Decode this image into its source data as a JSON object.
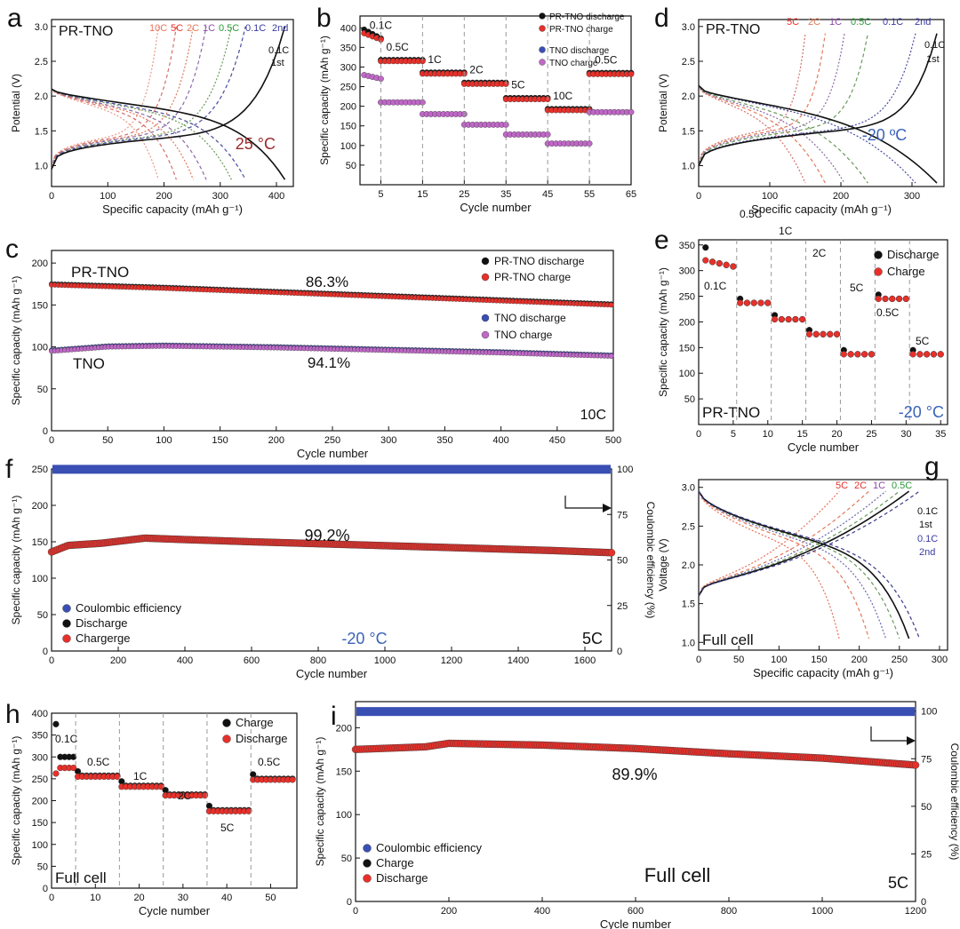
{
  "colors": {
    "red": "#e8302a",
    "black": "#111111",
    "blue": "#3a4fb4",
    "purple": "#c068c8",
    "green": "#2a9a3a",
    "navy": "#3a3aa0",
    "darkred": "#9a2a2a",
    "blueText": "#3b63b8"
  },
  "chart_data": [
    {
      "panel": "a",
      "type": "line",
      "label": "PR-TNO",
      "temperature": "25 °C",
      "xlabel": "Specific capacity (mAh g⁻¹)",
      "ylabel": "Potential (V)",
      "xlim": [
        0,
        430
      ],
      "ylim": [
        0.7,
        3.1
      ],
      "xticks": [
        0,
        100,
        200,
        300,
        400
      ],
      "yticks": [
        1.0,
        1.5,
        2.0,
        2.5,
        3.0
      ],
      "rate_labels": [
        "10C",
        "5C",
        "2C",
        "1C",
        "0.5C",
        "0.1C",
        "2nd"
      ],
      "first_labels": [
        "0.1C",
        "1st"
      ],
      "series": [
        {
          "rate": "10C",
          "capacity": 190
        },
        {
          "rate": "5C",
          "capacity": 222
        },
        {
          "rate": "2C",
          "capacity": 252
        },
        {
          "rate": "1C",
          "capacity": 275
        },
        {
          "rate": "0.5C",
          "capacity": 320
        },
        {
          "rate": "0.1C 2nd",
          "capacity": 345
        },
        {
          "rate": "0.1C 1st",
          "capacity": 415
        }
      ]
    },
    {
      "panel": "b",
      "type": "scatter",
      "xlabel": "Cycle number",
      "ylabel": "Specific capacity (mAh g⁻¹)",
      "xlim": [
        0,
        65
      ],
      "ylim": [
        0,
        430
      ],
      "xticks": [
        5,
        15,
        25,
        35,
        45,
        55,
        65
      ],
      "yticks": [
        50,
        100,
        150,
        200,
        250,
        300,
        350,
        400
      ],
      "legend": [
        "PR-TNO discharge",
        "PR-TNO charge",
        "TNO discharge",
        "TNO charge"
      ],
      "rate_labels": [
        "0.1C",
        "0.5C",
        "1C",
        "2C",
        "5C",
        "10C",
        "0.5C"
      ],
      "steps": [
        {
          "rate": "0.1C",
          "start": 1,
          "end": 5,
          "pr": 370,
          "tno": 270
        },
        {
          "rate": "0.5C",
          "start": 5,
          "end": 15,
          "pr": 315,
          "tno": 210
        },
        {
          "rate": "1C",
          "start": 15,
          "end": 25,
          "pr": 283,
          "tno": 180
        },
        {
          "rate": "2C",
          "start": 25,
          "end": 35,
          "pr": 257,
          "tno": 153
        },
        {
          "rate": "5C",
          "start": 35,
          "end": 45,
          "pr": 218,
          "tno": 128
        },
        {
          "rate": "10C",
          "start": 45,
          "end": 55,
          "pr": 190,
          "tno": 105
        },
        {
          "rate": "0.5C",
          "start": 55,
          "end": 65,
          "pr": 282,
          "tno": 185
        }
      ]
    },
    {
      "panel": "c",
      "type": "scatter",
      "xlabel": "Cycle number",
      "ylabel": "Specific capacity (mAh g⁻¹)",
      "xlim": [
        0,
        500
      ],
      "ylim": [
        0,
        215
      ],
      "xticks": [
        0,
        50,
        100,
        150,
        200,
        250,
        300,
        350,
        400,
        450,
        500
      ],
      "yticks": [
        0,
        50,
        100,
        150,
        200
      ],
      "legend": [
        "PR-TNO discharge",
        "PR-TNO charge",
        "TNO discharge",
        "TNO charge"
      ],
      "annotations": [
        "PR-TNO",
        "86.3%",
        "TNO",
        "94.1%",
        "10C"
      ],
      "series": [
        {
          "name": "PR-TNO",
          "x": [
            0,
            100,
            200,
            300,
            400,
            500
          ],
          "y": [
            174,
            170,
            165,
            160,
            155,
            150
          ]
        },
        {
          "name": "TNO",
          "x": [
            0,
            50,
            100,
            200,
            300,
            400,
            500
          ],
          "y": [
            95,
            100,
            101,
            99,
            96,
            93,
            89
          ]
        }
      ]
    },
    {
      "panel": "d",
      "type": "line",
      "label": "PR-TNO",
      "temperature": "-20 ºC",
      "xlabel": "Specific capacity (mAh g⁻¹)",
      "ylabel": "Potential (V)",
      "xlim": [
        0,
        345
      ],
      "ylim": [
        0.7,
        3.1
      ],
      "xticks": [
        0,
        100,
        200,
        300
      ],
      "yticks": [
        1.0,
        1.5,
        2.0,
        2.5,
        3.0
      ],
      "rate_labels": [
        "5C",
        "2C",
        "1C",
        "0.5C",
        "0.1C",
        "2nd"
      ],
      "first_labels": [
        "0.1C",
        "1st"
      ],
      "series": [
        {
          "rate": "5C",
          "capacity": 150
        },
        {
          "rate": "2C",
          "capacity": 178
        },
        {
          "rate": "1C",
          "capacity": 205
        },
        {
          "rate": "0.5C",
          "capacity": 238
        },
        {
          "rate": "0.1C 2nd",
          "capacity": 305
        },
        {
          "rate": "0.1C 1st",
          "capacity": 335
        }
      ]
    },
    {
      "panel": "e",
      "type": "scatter",
      "xlabel": "Cycle number",
      "ylabel": "Specific capacity (mAh g⁻¹)",
      "xlim": [
        0,
        36
      ],
      "ylim": [
        0,
        360
      ],
      "xticks": [
        0,
        5,
        10,
        15,
        20,
        25,
        30,
        35
      ],
      "yticks": [
        50,
        100,
        150,
        200,
        250,
        300,
        350
      ],
      "legend": [
        "Discharge",
        "Charge"
      ],
      "label": "PR-TNO",
      "temperature": "-20 °C",
      "rate_labels": [
        "0.1C",
        "0.5C",
        "1C",
        "2C",
        "5C",
        "0.5C",
        "5C"
      ],
      "steps": [
        {
          "rate": "0.1C",
          "start": 1,
          "end": 5,
          "value": 308
        },
        {
          "rate": "0.5C",
          "start": 6,
          "end": 10,
          "value": 237
        },
        {
          "rate": "1C",
          "start": 11,
          "end": 15,
          "value": 205
        },
        {
          "rate": "2C",
          "start": 16,
          "end": 20,
          "value": 176
        },
        {
          "rate": "5C",
          "start": 21,
          "end": 25,
          "value": 137
        },
        {
          "rate": "0.5C",
          "start": 26,
          "end": 30,
          "value": 245
        },
        {
          "rate": "5C",
          "start": 31,
          "end": 35,
          "value": 137
        }
      ]
    },
    {
      "panel": "f",
      "type": "scatter",
      "xlabel": "Cycle number",
      "ylabel": "Specific capacity (mAh g⁻¹)",
      "y2label": "Coulombic efficiency (%)",
      "xlim": [
        0,
        1680
      ],
      "ylim": [
        0,
        250
      ],
      "y2lim": [
        0,
        100
      ],
      "xticks": [
        0,
        200,
        400,
        600,
        800,
        1000,
        1200,
        1400,
        1600
      ],
      "yticks": [
        0,
        50,
        100,
        150,
        200,
        250
      ],
      "y2ticks": [
        0,
        25,
        50,
        75,
        100
      ],
      "legend": [
        "Coulombic efficiency",
        "Discharge",
        "Chargerge"
      ],
      "annotations": [
        "99.2%",
        "-20 °C",
        "5C"
      ],
      "efficiency": 99.8,
      "series": [
        {
          "name": "capacity",
          "x": [
            0,
            50,
            150,
            280,
            400,
            600,
            900,
            1200,
            1500,
            1680
          ],
          "y": [
            136,
            145,
            148,
            155,
            153,
            150,
            146,
            142,
            138,
            135
          ]
        }
      ]
    },
    {
      "panel": "g",
      "type": "line",
      "xlabel": "Specific capacity (mAh g⁻¹)",
      "ylabel": "Voltage (V)",
      "xlim": [
        0,
        310
      ],
      "ylim": [
        0.9,
        3.1
      ],
      "xticks": [
        0,
        50,
        100,
        150,
        200,
        250,
        300
      ],
      "yticks": [
        1.0,
        1.5,
        2.0,
        2.5,
        3.0
      ],
      "rate_labels": [
        "5C",
        "2C",
        "1C",
        "0.5C"
      ],
      "first_labels": [
        "0.1C",
        "1st",
        "0.1C",
        "2nd"
      ],
      "label": "Full cell",
      "series": [
        {
          "rate": "5C",
          "capacity": 175
        },
        {
          "rate": "2C",
          "capacity": 212
        },
        {
          "rate": "1C",
          "capacity": 233
        },
        {
          "rate": "0.5C",
          "capacity": 250
        },
        {
          "rate": "0.1C 1st",
          "capacity": 262
        },
        {
          "rate": "0.1C 2nd",
          "capacity": 275
        }
      ]
    },
    {
      "panel": "h",
      "type": "scatter",
      "xlabel": "Cycle number",
      "ylabel": "Specific capacity (mAh g⁻¹)",
      "xlim": [
        0,
        56
      ],
      "ylim": [
        0,
        400
      ],
      "xticks": [
        0,
        10,
        20,
        30,
        40,
        50
      ],
      "yticks": [
        0,
        50,
        100,
        150,
        200,
        250,
        300,
        350,
        400
      ],
      "legend": [
        "Charge",
        "Discharge"
      ],
      "label": "Full cell",
      "rate_labels": [
        "0.1C",
        "0.5C",
        "1C",
        "2C",
        "5C",
        "0.5C"
      ],
      "steps": [
        {
          "rate": "0.1C",
          "start": 1,
          "end": 5,
          "charge": 300,
          "discharge": 275
        },
        {
          "rate": "0.5C",
          "start": 6,
          "end": 15,
          "value": 255
        },
        {
          "rate": "1C",
          "start": 16,
          "end": 25,
          "value": 232
        },
        {
          "rate": "2C",
          "start": 26,
          "end": 35,
          "value": 212
        },
        {
          "rate": "5C",
          "start": 36,
          "end": 45,
          "value": 176
        },
        {
          "rate": "0.5C",
          "start": 46,
          "end": 55,
          "value": 248
        }
      ]
    },
    {
      "panel": "i",
      "type": "scatter",
      "xlabel": "Cycle number",
      "ylabel": "Specific capacity (mAh g⁻¹)",
      "y2label": "Coulombic efficiency (%)",
      "xlim": [
        0,
        1200
      ],
      "ylim": [
        0,
        230
      ],
      "y2lim": [
        0,
        105
      ],
      "xticks": [
        0,
        200,
        400,
        600,
        800,
        1000,
        1200
      ],
      "yticks": [
        0,
        50,
        100,
        150,
        200
      ],
      "y2ticks": [
        0,
        25,
        50,
        75,
        100
      ],
      "legend": [
        "Coulombic efficiency",
        "Charge",
        "Discharge"
      ],
      "annotations": [
        "89.9%",
        "Full cell",
        "5C"
      ],
      "efficiency": 99.8,
      "series": [
        {
          "name": "capacity",
          "x": [
            0,
            150,
            200,
            400,
            600,
            800,
            1000,
            1200
          ],
          "y": [
            175,
            178,
            182,
            180,
            176,
            170,
            165,
            157
          ]
        }
      ]
    }
  ]
}
